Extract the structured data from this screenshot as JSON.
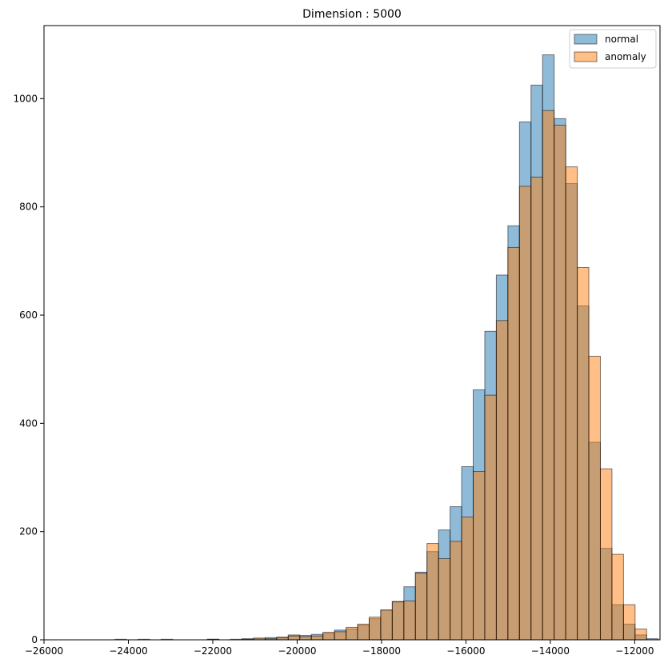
{
  "chart_data": {
    "type": "bar",
    "title": "Dimension : 5000",
    "xlabel": "",
    "ylabel": "",
    "xlim": [
      -26000,
      -11400
    ],
    "ylim": [
      0,
      1135
    ],
    "grid": false,
    "legend_placement": "top-right",
    "x_ticks": [
      -26000,
      -24000,
      -22000,
      -20000,
      -18000,
      -16000,
      -14000,
      -12000
    ],
    "x_tick_labels": [
      "−26000",
      "−24000",
      "−22000",
      "−20000",
      "−18000",
      "−16000",
      "−14000",
      "−12000"
    ],
    "y_ticks": [
      0,
      200,
      400,
      600,
      800,
      1000
    ],
    "y_tick_labels": [
      "0",
      "200",
      "400",
      "600",
      "800",
      "1000"
    ],
    "series": [
      {
        "name": "normal",
        "color": "#1f77b4",
        "bin_edges": [
          -25417,
          -25143,
          -24869,
          -24595,
          -24321,
          -24047,
          -23773,
          -23499,
          -23225,
          -22951,
          -22677,
          -22403,
          -22129,
          -21855,
          -21581,
          -21307,
          -21033,
          -20759,
          -20485,
          -20211,
          -19937,
          -19663,
          -19389,
          -19115,
          -18841,
          -18567,
          -18293,
          -18019,
          -17745,
          -17471,
          -17197,
          -16923,
          -16649,
          -16375,
          -16101,
          -15827,
          -15553,
          -15279,
          -15005,
          -14731,
          -14457,
          -14183,
          -13909,
          -13635,
          -13361,
          -13087,
          -12813,
          -12539,
          -12265,
          -11991,
          -11717,
          -11443
        ],
        "values": [
          0,
          0,
          0,
          0,
          1,
          0,
          1,
          0,
          1,
          0,
          0,
          0,
          1,
          0,
          1,
          2,
          3,
          4,
          5,
          9,
          8,
          10,
          12,
          18,
          20,
          27,
          39,
          55,
          71,
          98,
          125,
          163,
          203,
          246,
          320,
          462,
          570,
          674,
          765,
          957,
          1025,
          1081,
          963,
          843,
          617,
          365,
          169,
          65,
          29,
          9,
          2
        ]
      },
      {
        "name": "anomaly",
        "color": "#ff7f0e",
        "bin_edges": [
          -25417,
          -25143,
          -24869,
          -24595,
          -24321,
          -24047,
          -23773,
          -23499,
          -23225,
          -22951,
          -22677,
          -22403,
          -22129,
          -21855,
          -21581,
          -21307,
          -21033,
          -20759,
          -20485,
          -20211,
          -19937,
          -19663,
          -19389,
          -19115,
          -18841,
          -18567,
          -18293,
          -18019,
          -17745,
          -17471,
          -17197,
          -16923,
          -16649,
          -16375,
          -16101,
          -15827,
          -15553,
          -15279,
          -15005,
          -14731,
          -14457,
          -14183,
          -13909,
          -13635,
          -13361,
          -13087,
          -12813,
          -12539,
          -12265,
          -11991,
          -11717,
          -11443
        ],
        "values": [
          0,
          0,
          0,
          0,
          0,
          0,
          0,
          0,
          0,
          0,
          0,
          0,
          1,
          0,
          0,
          1,
          3,
          2,
          4,
          7,
          6,
          7,
          14,
          15,
          23,
          29,
          42,
          55,
          70,
          72,
          123,
          178,
          150,
          182,
          227,
          311,
          452,
          590,
          725,
          838,
          855,
          978,
          951,
          874,
          688,
          524,
          316,
          158,
          65,
          20,
          0
        ]
      }
    ]
  }
}
